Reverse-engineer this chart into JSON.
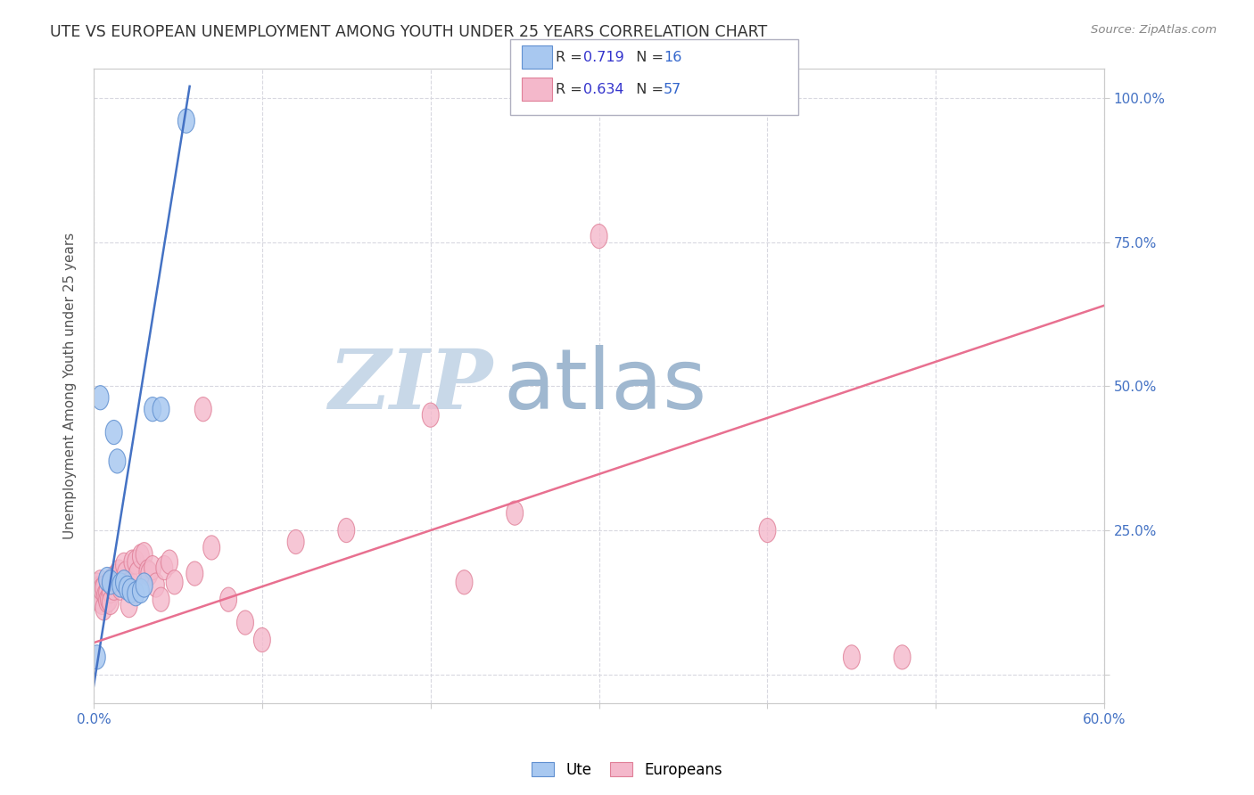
{
  "title": "UTE VS EUROPEAN UNEMPLOYMENT AMONG YOUTH UNDER 25 YEARS CORRELATION CHART",
  "source": "Source: ZipAtlas.com",
  "ylabel": "Unemployment Among Youth under 25 years",
  "x_ticks": [
    0.0,
    0.1,
    0.2,
    0.3,
    0.4,
    0.5,
    0.6
  ],
  "x_tick_labels": [
    "0.0%",
    "",
    "",
    "",
    "",
    "",
    "60.0%"
  ],
  "y_ticks": [
    0.0,
    0.25,
    0.5,
    0.75,
    1.0
  ],
  "y_tick_labels": [
    "",
    "25.0%",
    "50.0%",
    "75.0%",
    "100.0%"
  ],
  "xlim": [
    0.0,
    0.6
  ],
  "ylim": [
    -0.05,
    1.05
  ],
  "ute_color": "#a8c8f0",
  "eur_color": "#f4b8cb",
  "ute_edge_color": "#6090d0",
  "eur_edge_color": "#e08098",
  "ute_line_color": "#4472c4",
  "eur_line_color": "#e87090",
  "ute_R": "0.719",
  "ute_N": "16",
  "eur_R": "0.634",
  "eur_N": "57",
  "legend_R_color": "#3333cc",
  "legend_N_color": "#3366cc",
  "ute_scatter_x": [
    0.002,
    0.004,
    0.008,
    0.01,
    0.012,
    0.014,
    0.016,
    0.018,
    0.02,
    0.022,
    0.025,
    0.028,
    0.03,
    0.035,
    0.04,
    0.055
  ],
  "ute_scatter_y": [
    0.03,
    0.48,
    0.165,
    0.16,
    0.42,
    0.37,
    0.155,
    0.16,
    0.15,
    0.145,
    0.14,
    0.145,
    0.155,
    0.46,
    0.46,
    0.96
  ],
  "eur_scatter_x": [
    0.001,
    0.002,
    0.002,
    0.003,
    0.003,
    0.004,
    0.004,
    0.005,
    0.005,
    0.006,
    0.006,
    0.007,
    0.008,
    0.008,
    0.009,
    0.01,
    0.01,
    0.011,
    0.012,
    0.013,
    0.014,
    0.015,
    0.016,
    0.017,
    0.018,
    0.019,
    0.02,
    0.021,
    0.022,
    0.023,
    0.025,
    0.026,
    0.028,
    0.03,
    0.032,
    0.033,
    0.035,
    0.037,
    0.04,
    0.042,
    0.045,
    0.048,
    0.06,
    0.065,
    0.07,
    0.08,
    0.09,
    0.1,
    0.12,
    0.15,
    0.2,
    0.22,
    0.25,
    0.3,
    0.4,
    0.45,
    0.48
  ],
  "eur_scatter_y": [
    0.15,
    0.155,
    0.14,
    0.148,
    0.135,
    0.16,
    0.128,
    0.125,
    0.148,
    0.15,
    0.115,
    0.138,
    0.142,
    0.128,
    0.13,
    0.145,
    0.125,
    0.165,
    0.15,
    0.17,
    0.16,
    0.178,
    0.15,
    0.155,
    0.19,
    0.175,
    0.155,
    0.12,
    0.158,
    0.195,
    0.195,
    0.175,
    0.205,
    0.208,
    0.178,
    0.175,
    0.185,
    0.155,
    0.13,
    0.185,
    0.195,
    0.16,
    0.175,
    0.46,
    0.22,
    0.13,
    0.09,
    0.06,
    0.23,
    0.25,
    0.45,
    0.16,
    0.28,
    0.76,
    0.25,
    0.03,
    0.03
  ],
  "ute_line_x0": 0.0,
  "ute_line_y0": -0.02,
  "ute_line_x1": 0.057,
  "ute_line_y1": 1.02,
  "eur_line_x0": 0.0,
  "eur_line_y0": 0.055,
  "eur_line_x1": 0.6,
  "eur_line_y1": 0.64,
  "watermark_zip": "ZIP",
  "watermark_atlas": "atlas",
  "watermark_color_zip": "#c8d8e8",
  "watermark_color_atlas": "#a0b8d0",
  "background_color": "#ffffff",
  "grid_color": "#d8d8e0"
}
